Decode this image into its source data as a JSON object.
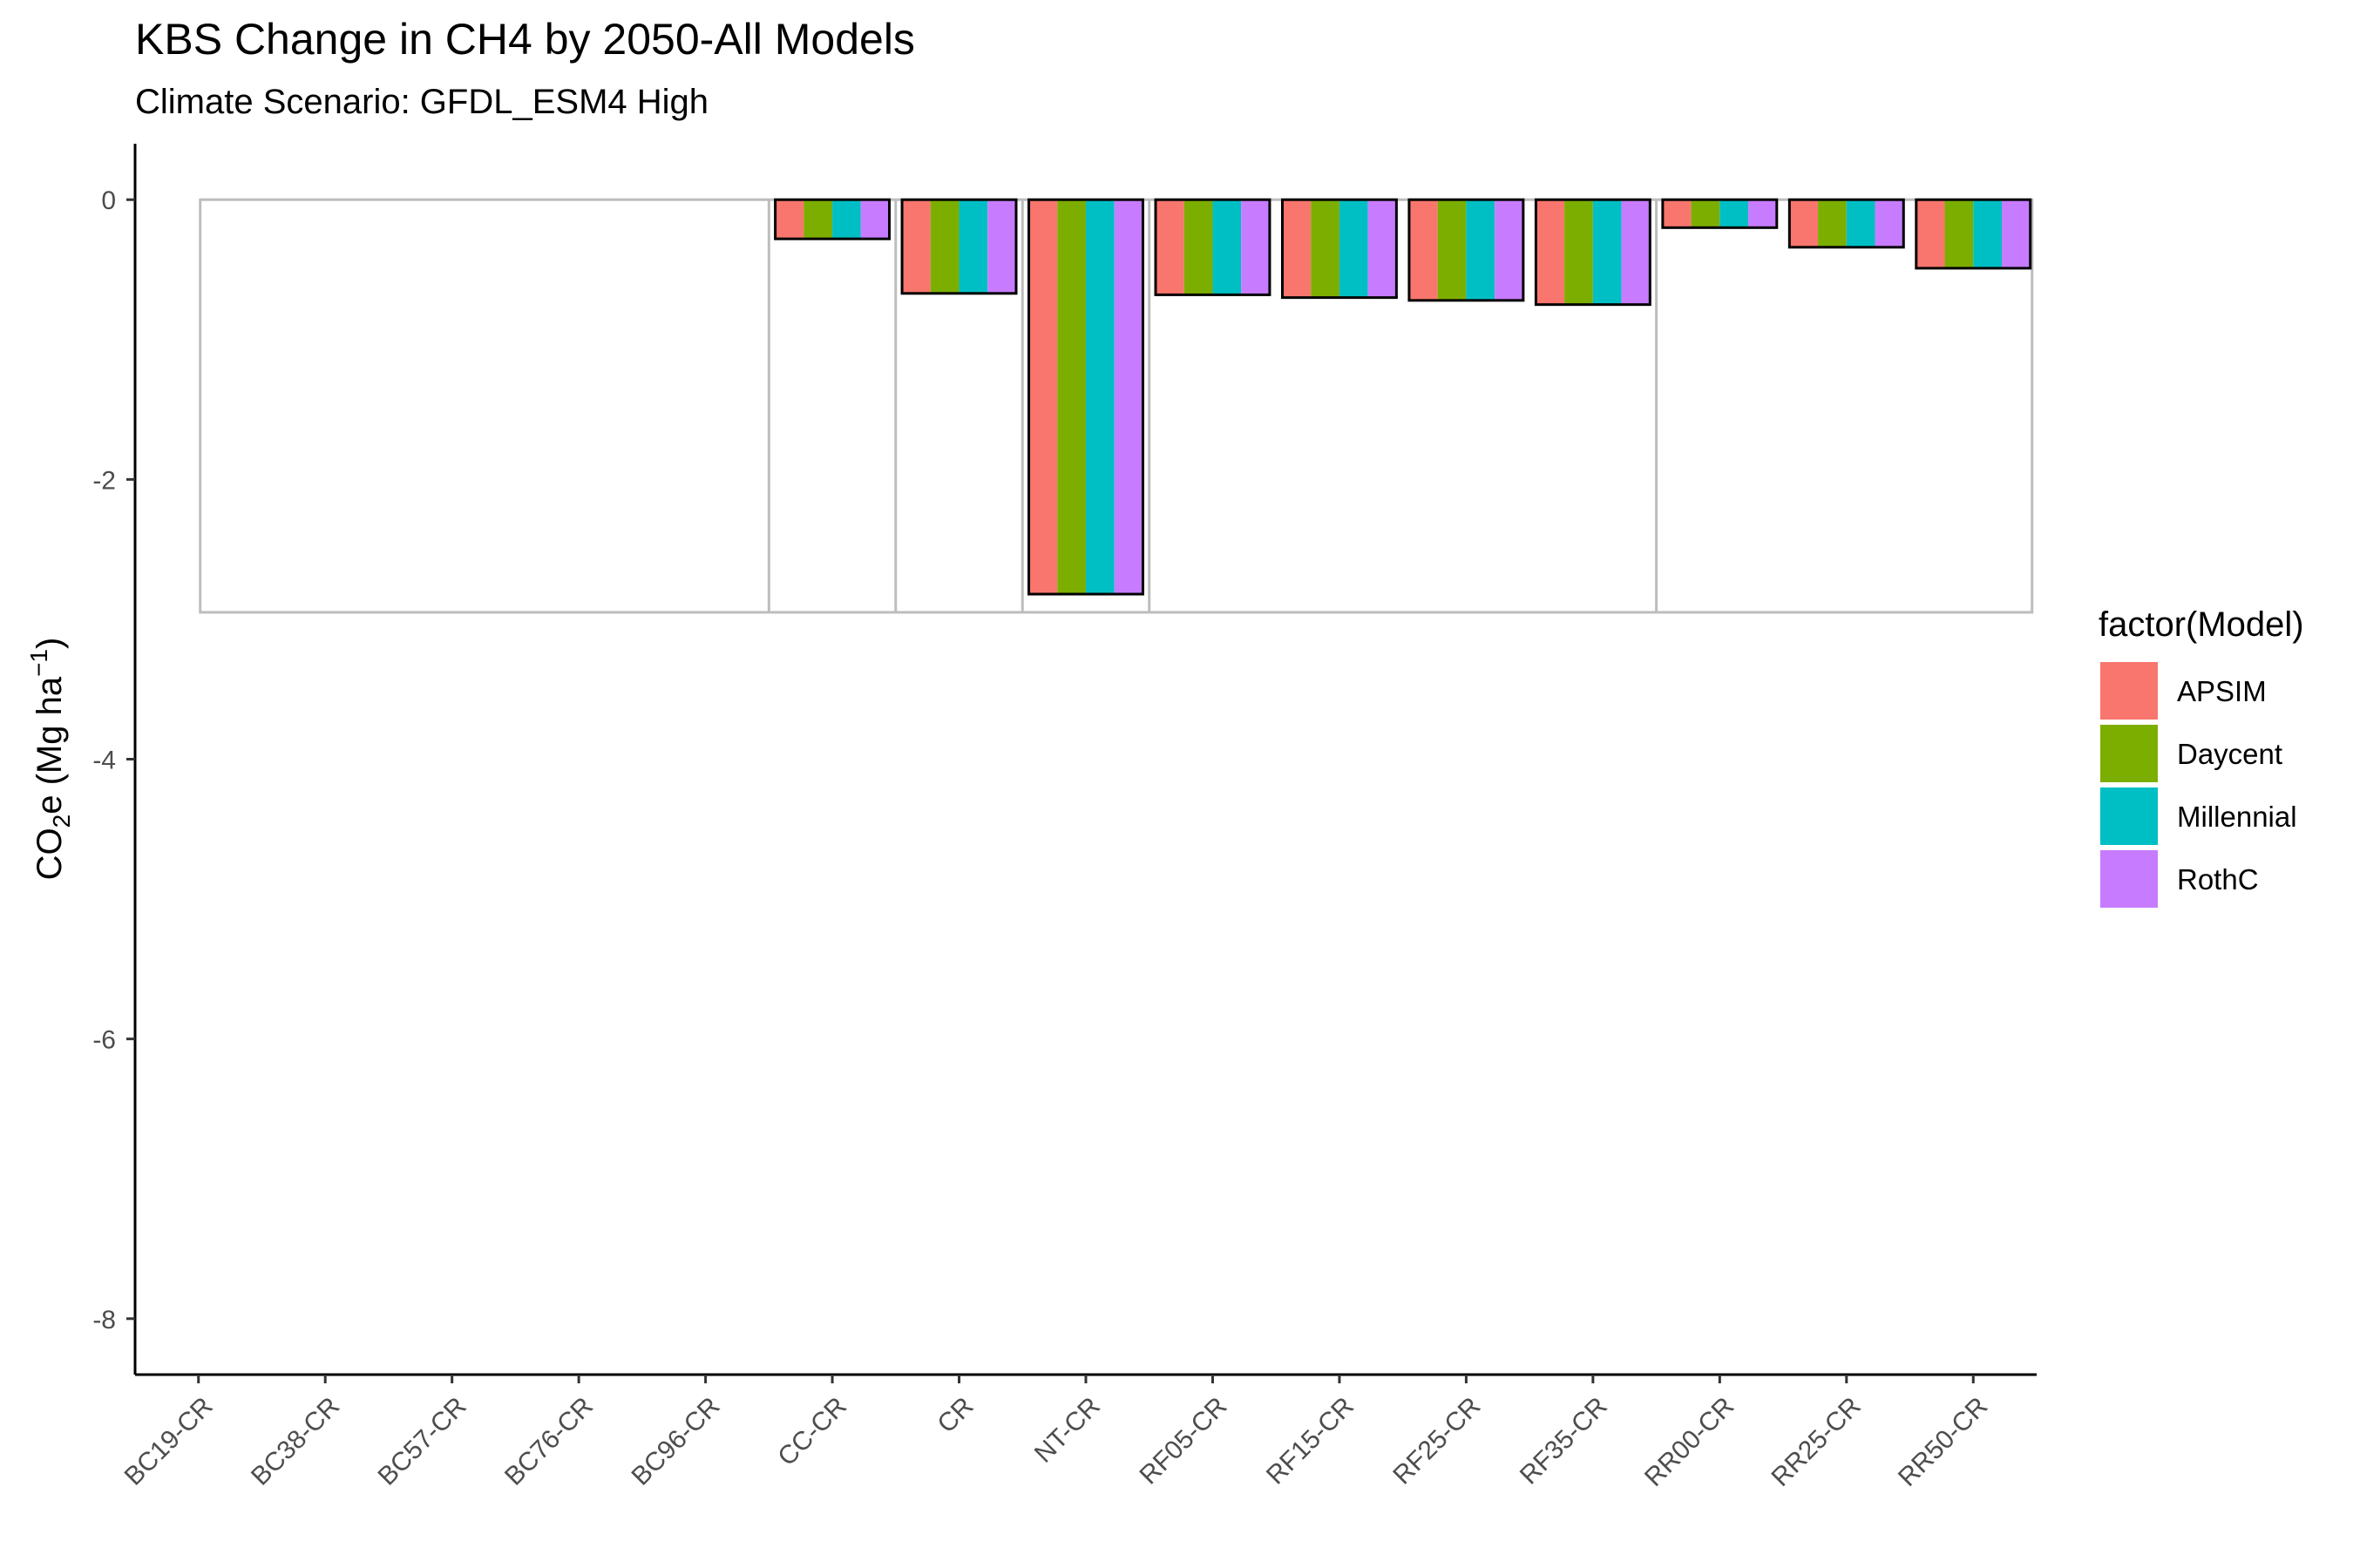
{
  "chart_data": {
    "type": "bar",
    "title": "KBS Change in CH4 by 2050-All Models",
    "subtitle": "Climate Scenario: GFDL_ESM4 High",
    "ylabel_main": "CO",
    "ylabel_sub": "2",
    "ylabel_rest": "e (Mg ha",
    "ylabel_sup": "−1",
    "ylabel_close": ")",
    "ylim": [
      -8.4,
      0.4
    ],
    "yticks": [
      0,
      -2,
      -4,
      -6,
      -8
    ],
    "ytick_labels": [
      "0",
      "-2",
      "-4",
      "-6",
      "-8"
    ],
    "categories": [
      "BC19-CR",
      "BC38-CR",
      "BC57-CR",
      "BC76-CR",
      "BC96-CR",
      "CC-CR",
      "CR",
      "NT-CR",
      "RF05-CR",
      "RF15-CR",
      "RF25-CR",
      "RF35-CR",
      "RR00-CR",
      "RR25-CR",
      "RR50-CR"
    ],
    "legend_title": "factor(Model)",
    "legend_position": "right",
    "grid": false,
    "series": [
      {
        "name": "APSIM",
        "color": "#F8766D",
        "values": [
          0,
          0,
          0,
          0,
          0,
          -0.28,
          -0.67,
          -2.82,
          -0.68,
          -0.7,
          -0.72,
          -0.75,
          -0.2,
          -0.34,
          -0.49
        ]
      },
      {
        "name": "Daycent",
        "color": "#7CAE00",
        "values": [
          0,
          0,
          0,
          0,
          0,
          -0.28,
          -0.67,
          -2.82,
          -0.68,
          -0.7,
          -0.72,
          -0.75,
          -0.2,
          -0.34,
          -0.49
        ]
      },
      {
        "name": "Millennial",
        "color": "#00BFC4",
        "values": [
          0,
          0,
          0,
          0,
          0,
          -0.28,
          -0.67,
          -2.82,
          -0.68,
          -0.7,
          -0.72,
          -0.75,
          -0.2,
          -0.34,
          -0.49
        ]
      },
      {
        "name": "RothC",
        "color": "#C77CFF",
        "values": [
          0,
          0,
          0,
          0,
          0,
          -0.28,
          -0.67,
          -2.82,
          -0.68,
          -0.7,
          -0.72,
          -0.75,
          -0.2,
          -0.34,
          -0.49
        ]
      }
    ],
    "reference_box": {
      "ymin": -2.95,
      "ymax": 0,
      "dividers_after": [
        "BC96-CR",
        "CC-CR",
        "CR",
        "NT-CR",
        "RF35-CR"
      ]
    }
  }
}
